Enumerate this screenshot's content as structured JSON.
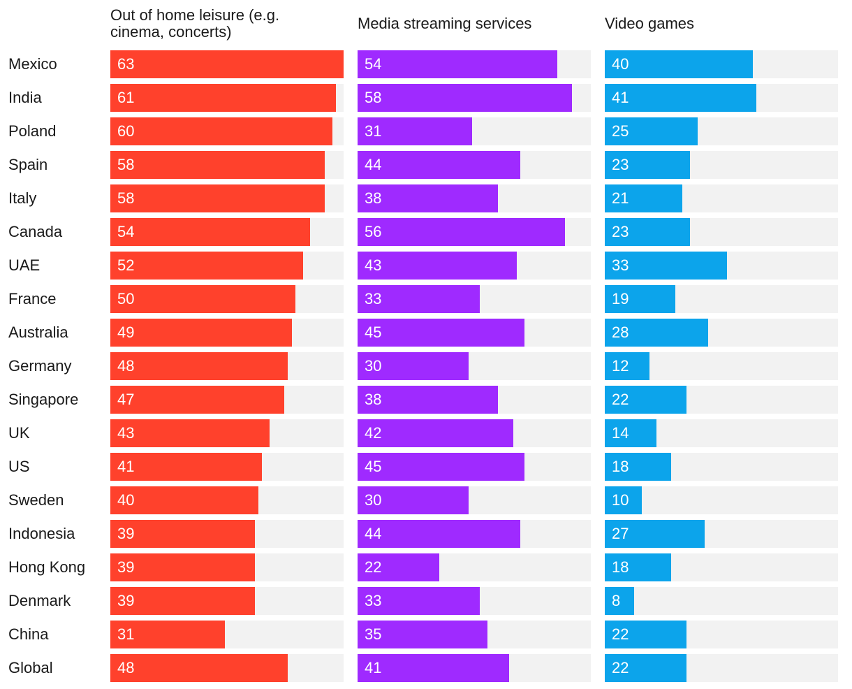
{
  "chart_data": {
    "type": "bar",
    "orientation": "horizontal",
    "xlim": [
      0,
      63
    ],
    "categories": [
      "Mexico",
      "India",
      "Poland",
      "Spain",
      "Italy",
      "Canada",
      "UAE",
      "France",
      "Australia",
      "Germany",
      "Singapore",
      "UK",
      "US",
      "Sweden",
      "Indonesia",
      "Hong Kong",
      "Denmark",
      "China",
      "Global"
    ],
    "series": [
      {
        "name": "Out of home leisure (e.g. cinema, concerts)",
        "title_lines": [
          "Out of home leisure (e.g.",
          "cinema, concerts)"
        ],
        "color": "#ff412c",
        "values": [
          63,
          61,
          60,
          58,
          58,
          54,
          52,
          50,
          49,
          48,
          47,
          43,
          41,
          40,
          39,
          39,
          39,
          31,
          48
        ]
      },
      {
        "name": "Media streaming services",
        "title_lines": [
          "Media streaming services"
        ],
        "color": "#9f2aff",
        "values": [
          54,
          58,
          31,
          44,
          38,
          56,
          43,
          33,
          45,
          30,
          38,
          42,
          45,
          30,
          44,
          22,
          33,
          35,
          41
        ]
      },
      {
        "name": "Video games",
        "title_lines": [
          "Video games"
        ],
        "color": "#0ca4eb",
        "values": [
          40,
          41,
          25,
          23,
          21,
          23,
          33,
          19,
          28,
          12,
          22,
          14,
          18,
          10,
          27,
          18,
          8,
          22,
          22
        ]
      }
    ],
    "track_color": "#f2f2f2",
    "title": "",
    "xlabel": "",
    "ylabel": ""
  }
}
